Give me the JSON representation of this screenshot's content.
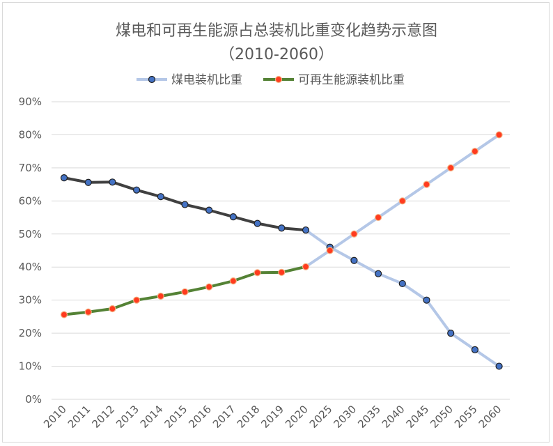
{
  "chart_data": {
    "type": "line",
    "title": "煤电和可再生能源占总装机比重变化趋势示意图",
    "subtitle": "（2010-2060）",
    "categories": [
      "2010",
      "2011",
      "2012",
      "2013",
      "2014",
      "2015",
      "2016",
      "2017",
      "2018",
      "2019",
      "2020",
      "2025",
      "2030",
      "2035",
      "2040",
      "2045",
      "2050",
      "2055",
      "2060"
    ],
    "series": [
      {
        "name": "煤电装机比重",
        "values": [
          0.67,
          0.656,
          0.657,
          0.633,
          0.613,
          0.589,
          0.572,
          0.552,
          0.532,
          0.518,
          0.512,
          0.46,
          0.42,
          0.38,
          0.35,
          0.3,
          0.2,
          0.15,
          0.1
        ],
        "historical_color": "#404040",
        "projected_color": "#b4c7e7",
        "marker_fill": "#4472c4",
        "marker_stroke": "#1f1f1f"
      },
      {
        "name": "可再生能源装机比重",
        "values": [
          0.256,
          0.264,
          0.274,
          0.3,
          0.312,
          0.325,
          0.34,
          0.358,
          0.383,
          0.384,
          0.401,
          0.45,
          0.5,
          0.55,
          0.6,
          0.65,
          0.7,
          0.75,
          0.8
        ],
        "historical_color": "#548235",
        "projected_color": "#b4c7e7",
        "marker_fill": "#ff3b1f",
        "marker_stroke": "#f4b183"
      }
    ],
    "historical_end_category": "2020",
    "ylim": [
      0,
      0.9
    ],
    "yticks": [
      "0%",
      "10%",
      "20%",
      "30%",
      "40%",
      "50%",
      "60%",
      "70%",
      "80%",
      "90%"
    ],
    "xlabel": "",
    "ylabel": "",
    "legend_position": "top",
    "grid": true,
    "grid_color": "#d9d9d9",
    "axis_text_color": "#595959"
  }
}
